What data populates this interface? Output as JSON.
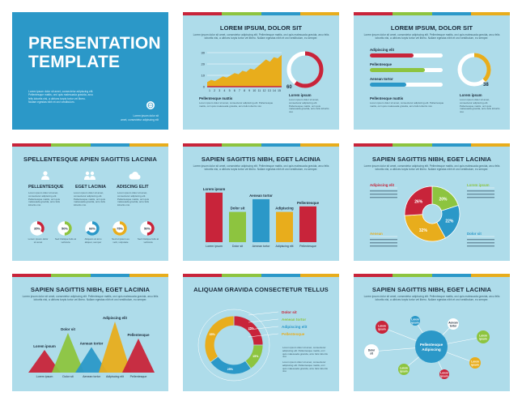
{
  "lorem_short": "Lorem ipsum dolor sit amet, consectetur adipiscing elit.",
  "lorem_line": "Lorem ipsum dolor sit amet, consectetur adipiscing elit. Pellentesque mattis, orci quis malesuada gravida, arcu",
  "lorem_line2": "felis lobortis nisi, a ultrices turpis tortor vel libero. Nullam egestas nibh et orci vestibulum, eu semper.",
  "slide1": {
    "title_line1": "PRESENTATION",
    "title_line2": "TEMPLATE",
    "lorem": [
      "Lorem ipsum dolor sit amet, consectetur adipiscing elit.",
      "Pellentesque mattis, orci quis malesuada gravida, arcu",
      "felis lobortis nisi, a ultrices turpis tortor vel libero.",
      "Nullam egestas nibh et orci vestibulum."
    ],
    "footer": [
      "Lorem ipsum dolor sit",
      "amet, consectetur adipiscing elit"
    ]
  },
  "slide2": {
    "title": "LOREM IPSUM, DOLOR SIT",
    "y_ticks": [
      "30",
      "20",
      "10",
      "0"
    ],
    "x_ticks": [
      "1",
      "2",
      "3",
      "4",
      "5",
      "6",
      "7",
      "8",
      "9",
      "10",
      "11",
      "12",
      "13",
      "14",
      "15"
    ],
    "area_values": [
      4,
      6,
      5,
      7,
      9,
      8,
      10,
      12,
      11,
      14,
      13,
      16,
      15,
      18,
      21,
      24,
      22,
      26,
      25,
      28
    ],
    "ring_value": "60",
    "ring_fraction": 0.6,
    "label_a": "Pellentesque mattis",
    "label_b": "Lorem ipsum",
    "desc": "Lorem ipsum dolor sit amet, consectetur adipiscing elit. Pellentesque mattis, orci quis malesuada gravida, arcu felis lobortis nisi."
  },
  "slide3": {
    "title": "LOREM IPSUM, DOLOR SIT",
    "bars": [
      {
        "label": "Adipiscing elit",
        "fraction": 0.6,
        "color": "#c8243a"
      },
      {
        "label": "Pellentesque",
        "fraction": 0.75,
        "color": "#8dc43f"
      },
      {
        "label": "Aenean tortor",
        "fraction": 0.5,
        "color": "#2b98c8"
      }
    ],
    "ring_value": "38",
    "ring_fraction": 0.38,
    "label_a": "Pellentesque mattis",
    "label_b": "Lorem ipsum"
  },
  "slide4": {
    "title": "SPELLENTESQUE APIEN SAGITTIS LACINIA",
    "cols": [
      {
        "title": "PELLENTESQUE",
        "icon": "user-icon"
      },
      {
        "title": "EGET LACINIA",
        "icon": "group-icon"
      },
      {
        "title": "ADISCING ELIT",
        "icon": "cloud-icon"
      }
    ],
    "donuts": [
      {
        "value": "35%",
        "fraction": 0.35,
        "color": "#c8243a",
        "label": "Lorem ipsum dolor sit amet"
      },
      {
        "value": "50%",
        "fraction": 0.5,
        "color": "#8dc43f",
        "label": "Sed tristique felis at vehicula"
      },
      {
        "value": "66%",
        "fraction": 0.66,
        "color": "#2b98c8",
        "label": "Aliquam at arcu aliquet, semper"
      },
      {
        "value": "75%",
        "fraction": 0.75,
        "color": "#e8ad1c",
        "label": "Sed ut ipsum eu velit, vulputate"
      },
      {
        "value": "50%",
        "fraction": 0.5,
        "color": "#c8243a",
        "label": "Sed tristique felis at vehicula"
      }
    ]
  },
  "slide5": {
    "title": "SAPIEN SAGITTIS NIBH, EGET LACINIA",
    "chart_data": {
      "type": "bar",
      "categories": [
        "Lorem ipsum",
        "Dolor sit",
        "Aenean tortor",
        "Adipiscing",
        "Pellentesque"
      ],
      "values": [
        90,
        55,
        78,
        55,
        65
      ],
      "colors": [
        "#c8243a",
        "#8dc43f",
        "#2b98c8",
        "#e8ad1c",
        "#c8243a"
      ],
      "ylim": [
        0,
        100
      ]
    },
    "x_labels": [
      "Lorem ipsum",
      "Dolor sit",
      "Aenean tortor",
      "Adipiscing elit",
      "Pellentesque"
    ]
  },
  "slide6": {
    "title": "SAPIEN SAGITTIS NIBH, EGET LACINIA",
    "chart_data": {
      "type": "pie",
      "categories": [
        "Lorem ipsum",
        "Dolor sit",
        "Aenean",
        "Adipiscing elit"
      ],
      "values": [
        20,
        22,
        32,
        26
      ],
      "labels": [
        "20%",
        "22%",
        "32%",
        "26%"
      ],
      "colors": [
        "#8dc43f",
        "#2b98c8",
        "#e8ad1c",
        "#c8243a"
      ]
    }
  },
  "slide7": {
    "title": "SAPIEN SAGITTIS NIBH, EGET LACINIA",
    "chart_data": {
      "type": "bar",
      "categories": [
        "Lorem ipsum",
        "Dolor sit",
        "Aenean tortor",
        "Adipiscing elit",
        "Pellentesque"
      ],
      "values": [
        40,
        70,
        45,
        90,
        60
      ],
      "colors": [
        "#c8243a",
        "#8dc43f",
        "#2b98c8",
        "#e8ad1c",
        "#c8243a"
      ],
      "ylim": [
        0,
        100
      ]
    }
  },
  "slide8": {
    "title": "ALIQUAM GRAVIDA CONSECTETUR TELLUS",
    "chart_data": {
      "type": "pie",
      "categories": [
        "Dolor sit",
        "Aenean tortor",
        "Adipiscing elit",
        "Pellentesque"
      ],
      "values": [
        25,
        15,
        25,
        35
      ],
      "labels": [
        "25%",
        "15%",
        "25%",
        "35%"
      ],
      "colors": [
        "#c8243a",
        "#8dc43f",
        "#2b98c8",
        "#e8ad1c"
      ]
    }
  },
  "slide9": {
    "title": "SAPIEN SAGITTIS NIBH, EGET LACINIA",
    "center": "Pellentesque Adipiscing",
    "nodes": [
      {
        "label": "Lorem ipsum",
        "color": "#c8243a"
      },
      {
        "label": "Lorem ipsum",
        "color": "#2b98c8"
      },
      {
        "label": "Aenean tortor",
        "color": "#ffffff"
      },
      {
        "label": "Lorem ipsum",
        "color": "#8dc43f"
      },
      {
        "label": "Lorem ipsum",
        "color": "#e8ad1c"
      },
      {
        "label": "Lorem ipsum",
        "color": "#c8243a"
      },
      {
        "label": "Lorem ipsum",
        "color": "#8dc43f"
      },
      {
        "label": "Dolor sit",
        "color": "#ffffff"
      }
    ]
  }
}
